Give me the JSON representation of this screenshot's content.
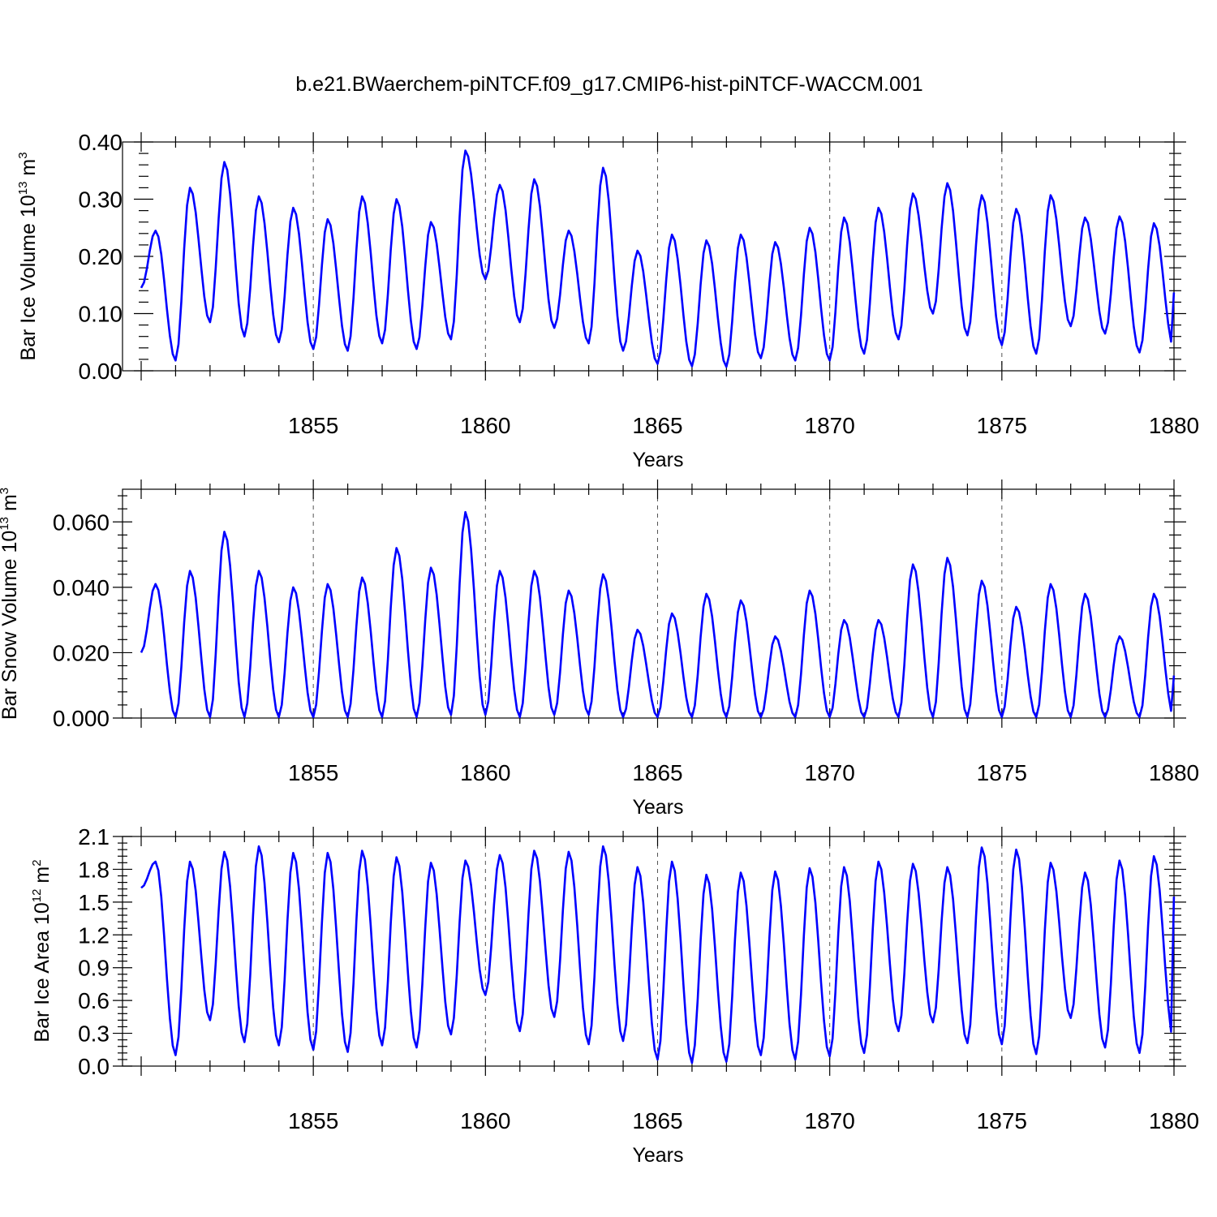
{
  "title": "b.e21.BWaerchem-piNTCF.f09_g17.CMIP6-hist-piNTCF-WACCM.001",
  "colors": {
    "line": "#0000ff",
    "axes": "#000000",
    "grid": "#555555"
  },
  "chart_data": [
    {
      "type": "line",
      "ylabel": "Bar Ice Volume 10",
      "ylabel_exp1": "13",
      "ylabel_unit": " m",
      "ylabel_exp2": "3",
      "xlabel": "Years",
      "xlim": [
        1850,
        1880
      ],
      "ylim": [
        0,
        0.4
      ],
      "xticks": [
        1855,
        1860,
        1865,
        1870,
        1875,
        1880
      ],
      "xtick_labels": [
        "1855",
        "1860",
        "1865",
        "1870",
        "1875",
        "1880"
      ],
      "yticks": [
        0,
        0.1,
        0.2,
        0.3,
        0.4
      ],
      "ytick_labels": [
        "0.00",
        "0.10",
        "0.20",
        "0.30",
        "0.40"
      ],
      "grid_x": [
        1855,
        1860,
        1865,
        1870,
        1875
      ],
      "series": [
        {
          "name": "Bar Ice Volume",
          "start": 1850.0,
          "step": 0.08333,
          "peaks": [
            0.245,
            0.32,
            0.365,
            0.305,
            0.285,
            0.265,
            0.305,
            0.3,
            0.26,
            0.385,
            0.325,
            0.335,
            0.245,
            0.355,
            0.21,
            0.238,
            0.228,
            0.238,
            0.225,
            0.25,
            0.268,
            0.285,
            0.31,
            0.328,
            0.307,
            0.283,
            0.307,
            0.268,
            0.27,
            0.258
          ],
          "troughs": [
            0.145,
            0.018,
            0.085,
            0.06,
            0.05,
            0.038,
            0.035,
            0.048,
            0.038,
            0.055,
            0.16,
            0.085,
            0.075,
            0.048,
            0.035,
            0.012,
            0.008,
            0.007,
            0.022,
            0.018,
            0.018,
            0.03,
            0.055,
            0.1,
            0.062,
            0.045,
            0.03,
            0.078,
            0.065,
            0.032,
            0.04
          ],
          "end": 0.137
        }
      ]
    },
    {
      "type": "line",
      "ylabel": "Bar Snow Volume 10",
      "ylabel_exp1": "13",
      "ylabel_unit": " m",
      "ylabel_exp2": "3",
      "xlabel": "Years",
      "xlim": [
        1850,
        1880
      ],
      "ylim": [
        0,
        0.07
      ],
      "xticks": [
        1855,
        1860,
        1865,
        1870,
        1875,
        1880
      ],
      "xtick_labels": [
        "1855",
        "1860",
        "1865",
        "1870",
        "1875",
        "1880"
      ],
      "yticks": [
        0,
        0.02,
        0.04,
        0.06
      ],
      "ytick_labels": [
        "0.000",
        "0.020",
        "0.040",
        "0.060"
      ],
      "grid_x": [
        1855,
        1860,
        1865,
        1870,
        1875
      ],
      "series": [
        {
          "name": "Bar Snow Volume",
          "start": 1850.0,
          "step": 0.08333,
          "peaks": [
            0.041,
            0.045,
            0.057,
            0.045,
            0.04,
            0.041,
            0.043,
            0.052,
            0.046,
            0.063,
            0.045,
            0.045,
            0.039,
            0.044,
            0.027,
            0.032,
            0.038,
            0.036,
            0.025,
            0.039,
            0.03,
            0.03,
            0.047,
            0.049,
            0.042,
            0.034,
            0.041,
            0.038,
            0.025,
            0.038
          ],
          "troughs": [
            0.02,
            0.0003,
            0.0003,
            0.0003,
            0.0003,
            0.0003,
            0.0003,
            0.0003,
            0.0003,
            0.001,
            0.001,
            0.0003,
            0.001,
            0.001,
            0.0003,
            0.0003,
            0.0003,
            0.0003,
            0.0003,
            0.0003,
            0.0003,
            0.0003,
            0.0003,
            0.0003,
            0.0003,
            0.0003,
            0.0003,
            0.0003,
            0.0003,
            0.0003,
            0.0003
          ],
          "end": 0.013
        }
      ]
    },
    {
      "type": "line",
      "ylabel": "Bar Ice Area 10",
      "ylabel_exp1": "12",
      "ylabel_unit": " m",
      "ylabel_exp2": "2",
      "xlabel": "Years",
      "xlim": [
        1850,
        1880
      ],
      "ylim": [
        0,
        2.1
      ],
      "xticks": [
        1855,
        1860,
        1865,
        1870,
        1875,
        1880
      ],
      "xtick_labels": [
        "1855",
        "1860",
        "1865",
        "1870",
        "1875",
        "1880"
      ],
      "yticks": [
        0,
        0.3,
        0.6,
        0.9,
        1.2,
        1.5,
        1.8,
        2.1
      ],
      "ytick_labels": [
        "0.0",
        "0.3",
        "0.6",
        "0.9",
        "1.2",
        "1.5",
        "1.8",
        "2.1"
      ],
      "grid_x": [
        1855,
        1860,
        1865,
        1870,
        1875
      ],
      "series": [
        {
          "name": "Bar Ice Area",
          "start": 1850.0,
          "step": 0.08333,
          "peaks": [
            1.87,
            1.87,
            1.96,
            2.01,
            1.95,
            1.95,
            1.97,
            1.91,
            1.86,
            1.88,
            1.93,
            1.97,
            1.96,
            2.01,
            1.82,
            1.87,
            1.75,
            1.77,
            1.78,
            1.81,
            1.82,
            1.87,
            1.85,
            1.82,
            2.0,
            1.98,
            1.86,
            1.77,
            1.88,
            1.92
          ],
          "troughs": [
            1.63,
            0.1,
            0.42,
            0.22,
            0.19,
            0.15,
            0.13,
            0.19,
            0.17,
            0.29,
            0.65,
            0.32,
            0.45,
            0.2,
            0.23,
            0.06,
            0.03,
            0.04,
            0.1,
            0.06,
            0.09,
            0.12,
            0.32,
            0.4,
            0.21,
            0.2,
            0.11,
            0.44,
            0.17,
            0.12,
            0.23
          ],
          "end": 1.55
        }
      ]
    }
  ]
}
